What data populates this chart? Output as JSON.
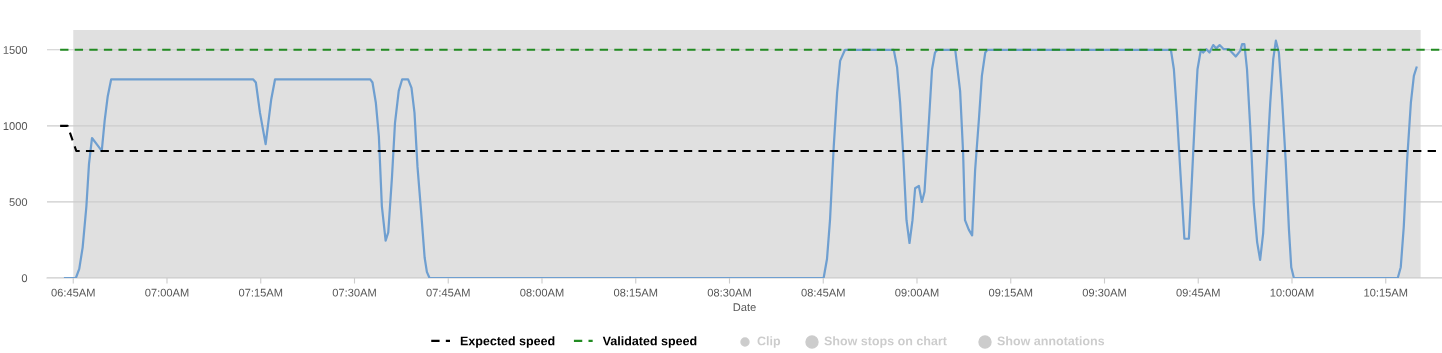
{
  "chart_data": {
    "type": "line",
    "xlabel": "Date",
    "x": [
      6.728,
      6.757,
      6.766,
      6.775,
      6.785,
      6.792,
      6.8,
      6.814,
      6.826,
      6.834,
      6.842,
      6.851,
      7.23,
      7.237,
      7.248,
      7.263,
      7.278,
      7.288,
      7.542,
      7.548,
      7.557,
      7.565,
      7.573,
      7.583,
      7.59,
      7.6,
      7.608,
      7.618,
      7.627,
      7.643,
      7.652,
      7.66,
      7.668,
      7.678,
      7.687,
      7.693,
      7.7,
      8.751,
      8.76,
      8.768,
      8.778,
      8.787,
      8.795,
      8.808,
      8.938,
      8.947,
      8.955,
      8.963,
      8.972,
      8.98,
      8.988,
      8.995,
      9.005,
      9.013,
      9.02,
      9.032,
      9.04,
      9.048,
      9.055,
      9.102,
      9.115,
      9.123,
      9.128,
      9.138,
      9.147,
      9.155,
      9.165,
      9.173,
      9.182,
      9.188,
      9.677,
      9.685,
      9.693,
      9.702,
      9.713,
      9.725,
      9.733,
      9.743,
      9.748,
      9.757,
      9.763,
      9.772,
      9.78,
      9.79,
      9.798,
      9.807,
      9.818,
      9.832,
      9.84,
      9.85,
      9.862,
      9.867,
      9.873,
      9.88,
      9.89,
      9.898,
      9.907,
      9.915,
      9.923,
      9.932,
      9.942,
      9.95,
      9.957,
      9.965,
      9.973,
      9.983,
      9.992,
      9.998,
      10.005,
      10.282,
      10.29,
      10.298,
      10.307,
      10.317,
      10.325,
      10.332
    ],
    "series": [
      {
        "color": "#6f9fd0",
        "values": [
          0,
          0,
          60,
          200,
          470,
          750,
          920,
          875,
          835,
          1040,
          1195,
          1305,
          1305,
          1285,
          1085,
          880,
          1175,
          1305,
          1305,
          1285,
          1150,
          930,
          470,
          245,
          300,
          665,
          1020,
          1230,
          1305,
          1305,
          1250,
          1085,
          730,
          425,
          135,
          40,
          0,
          0,
          125,
          380,
          865,
          1218,
          1427,
          1500,
          1500,
          1383,
          1152,
          820,
          380,
          230,
          380,
          590,
          605,
          500,
          567,
          1040,
          1370,
          1482,
          1500,
          1500,
          1228,
          820,
          380,
          318,
          280,
          710,
          1040,
          1328,
          1482,
          1500,
          1500,
          1372,
          1085,
          710,
          258,
          258,
          645,
          1152,
          1372,
          1500,
          1482,
          1504,
          1482,
          1531,
          1509,
          1531,
          1504,
          1504,
          1482,
          1456,
          1493,
          1537,
          1537,
          1372,
          930,
          490,
          236,
          119,
          291,
          710,
          1152,
          1438,
          1560,
          1482,
          1195,
          776,
          313,
          71,
          0,
          0,
          71,
          335,
          776,
          1152,
          1328,
          1383
        ]
      },
      {
        "name": "Expected speed",
        "color": "#000000",
        "line_style": "dashed",
        "x": [
          6.715,
          6.735,
          6.758,
          10.4
        ],
        "values": [
          1000,
          1000,
          835,
          835
        ]
      },
      {
        "name": "Validated speed",
        "color": "#228b22",
        "line_style": "dashed",
        "x": [
          6.715,
          10.4
        ],
        "values": [
          1500,
          1500
        ]
      }
    ],
    "bands": [
      {
        "axis": "x",
        "from": 6.75,
        "to": 10.343,
        "color": "#e0e0e0"
      }
    ],
    "xlim": [
      6.68,
      10.4
    ],
    "xticks": [
      {
        "value": 6.75,
        "label": "06:45AM"
      },
      {
        "value": 7.0,
        "label": "07:00AM"
      },
      {
        "value": 7.25,
        "label": "07:15AM"
      },
      {
        "value": 7.5,
        "label": "07:30AM"
      },
      {
        "value": 7.75,
        "label": "07:45AM"
      },
      {
        "value": 8.0,
        "label": "08:00AM"
      },
      {
        "value": 8.25,
        "label": "08:15AM"
      },
      {
        "value": 8.5,
        "label": "08:30AM"
      },
      {
        "value": 8.75,
        "label": "08:45AM"
      },
      {
        "value": 9.0,
        "label": "09:00AM"
      },
      {
        "value": 9.25,
        "label": "09:15AM"
      },
      {
        "value": 9.5,
        "label": "09:30AM"
      },
      {
        "value": 9.75,
        "label": "09:45AM"
      },
      {
        "value": 10.0,
        "label": "10:00AM"
      },
      {
        "value": 10.25,
        "label": "10:15AM"
      }
    ],
    "ylim": [
      0,
      1630
    ],
    "yticks": [
      0,
      500,
      1000,
      1500
    ],
    "grid": "y",
    "legend": "bottom",
    "marker": "none",
    "line_style": "solid",
    "annotations": [
      "Clip",
      "Show stops on chart",
      "Show annotations"
    ]
  }
}
